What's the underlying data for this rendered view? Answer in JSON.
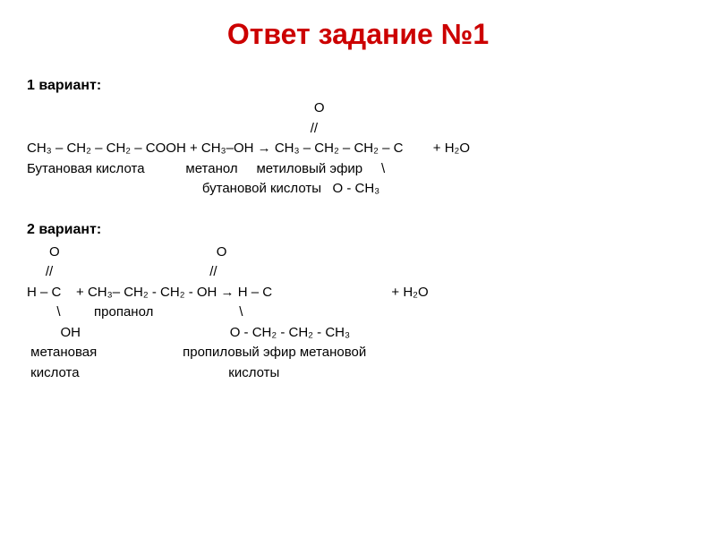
{
  "title": "Ответ задание №1",
  "variant1": {
    "label": "1 вариант:",
    "line1_right": "                                                                             O",
    "line2_right": "                                                                            //",
    "reaction": "CH₃ – CH₂ – CH₂ – COOH + CH₃–OH → CH₃ – CH₂ – CH₂ – C        + H₂O",
    "labels1": "Бутановая кислота           метанол     метиловый эфир     \\",
    "labels2": "                                               бутановой кислоты   O - CH₃"
  },
  "variant2": {
    "label": " 2 вариант:",
    "line1": "      O                                          O",
    "line2": "     //                                          //",
    "reaction": "H – C    + CH₃– CH₂ - CH₂ - OH → H – C                                + H₂O",
    "line4": "        \\         пропанол                       \\",
    "line5": "         OH                                        O - CH₂ - CH₂ - CH₃",
    "labels1": " метановая                       пропиловый эфир метановой",
    "labels2": " кислота                                        кислоты"
  }
}
